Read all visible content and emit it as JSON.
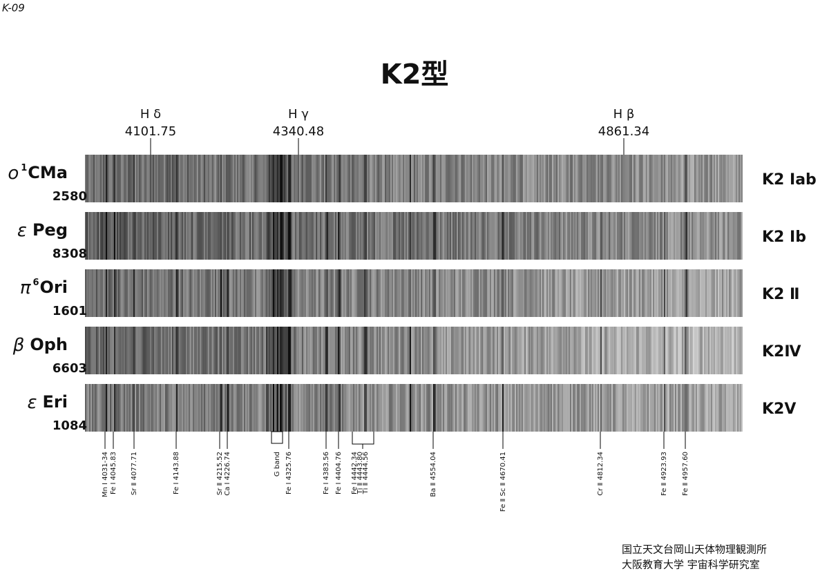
{
  "header": {
    "code": "K-09"
  },
  "title": "K2型",
  "markers": [
    {
      "name": "H δ",
      "wavelength": "4101.75"
    },
    {
      "name": "H γ",
      "wavelength": "4340.48"
    },
    {
      "name": "H β",
      "wavelength": "4861.34"
    }
  ],
  "stars": [
    {
      "greek": "ο",
      "sup": "1",
      "name": "CMa",
      "hd": "2580",
      "class": "K2 Ⅰab"
    },
    {
      "greek": "ε",
      "name": "Peg",
      "hd": "8308",
      "class": "K2 Ⅰb"
    },
    {
      "greek": "π",
      "sup": "6",
      "name": "Ori",
      "hd": "1601",
      "class": "K2 Ⅱ"
    },
    {
      "greek": "β",
      "name": "Oph",
      "hd": "6603",
      "class": "K2Ⅳ"
    },
    {
      "greek": "ε",
      "name": "Eri",
      "hd": "1084",
      "class": "K2Ⅴ"
    }
  ],
  "lines": [
    "Mn Ⅰ  4031-34",
    "Fe Ⅰ  4045.83",
    "Sr Ⅱ  4077.71",
    "Fe Ⅰ  4143.88",
    "Sr Ⅱ  4215.52",
    "Ca Ⅰ  4226.74",
    "G band",
    "Fe Ⅰ  4325.76",
    "Fe Ⅰ  4383.56",
    "Fe Ⅰ  4404.76",
    "Fe Ⅰ  4442.34",
    "Ti Ⅱ  4443.80",
    "Ti Ⅱ  4444.56",
    "Ba Ⅱ  4554.04",
    "Fe Ⅱ  Sc Ⅱ  4670.41",
    "Cr Ⅱ  4812.34",
    "Fe Ⅱ  4923.93",
    "Fe Ⅱ  4957.60"
  ],
  "credits": [
    "国立天文台岡山天体物理観測所",
    "大阪教育大学 宇宙科学研究室"
  ]
}
